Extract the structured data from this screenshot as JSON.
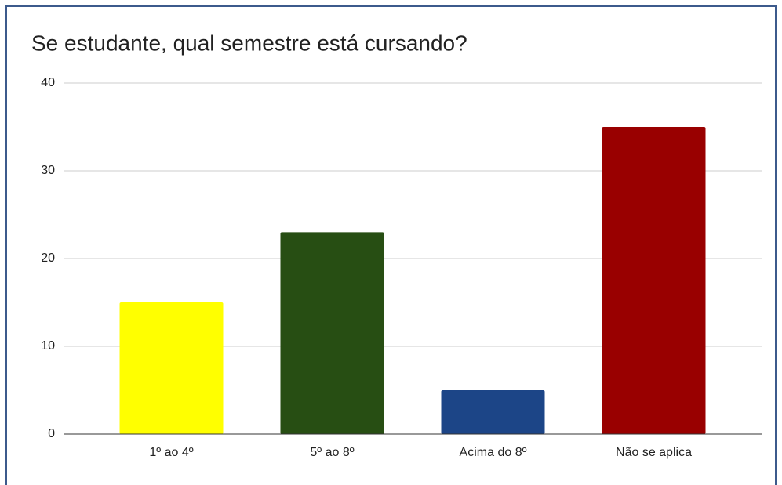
{
  "chart_data": {
    "type": "bar",
    "title": "Se estudante, qual semestre está cursando?",
    "categories": [
      "1º ao 4º",
      "5º ao 8º",
      "Acima do 8º",
      "Não se aplica"
    ],
    "values": [
      15,
      23,
      5,
      35
    ],
    "colors": [
      "#ffff00",
      "#274e13",
      "#1c4587",
      "#990000"
    ],
    "ylim": [
      0,
      40
    ],
    "yticks": [
      0,
      10,
      20,
      30,
      40
    ],
    "grid": true
  }
}
